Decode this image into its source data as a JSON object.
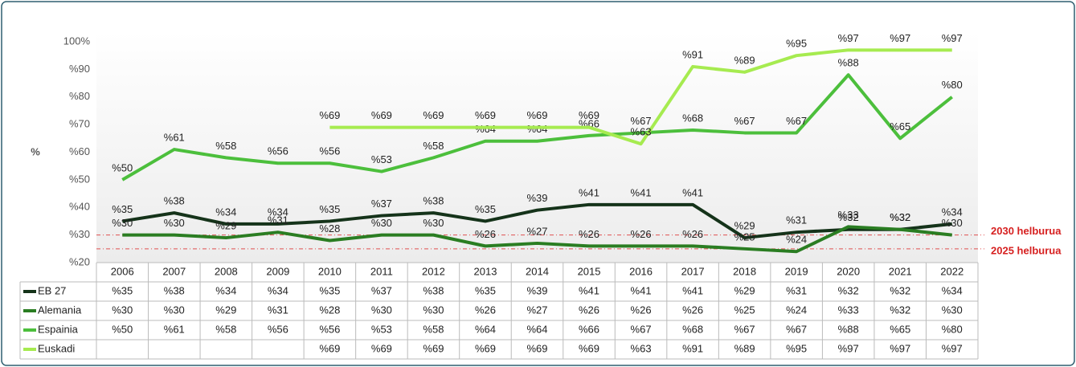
{
  "chart_data": {
    "type": "line",
    "y_label": "%",
    "categories": [
      "2006",
      "2007",
      "2008",
      "2009",
      "2010",
      "2011",
      "2012",
      "2013",
      "2014",
      "2015",
      "2016",
      "2017",
      "2018",
      "2019",
      "2020",
      "2021",
      "2022"
    ],
    "ylim": [
      20,
      100
    ],
    "yticks": [
      {
        "value": 20,
        "label": "%20"
      },
      {
        "value": 30,
        "label": "%30"
      },
      {
        "value": 40,
        "label": "%40"
      },
      {
        "value": 50,
        "label": "%50"
      },
      {
        "value": 60,
        "label": "%60"
      },
      {
        "value": 70,
        "label": "%70"
      },
      {
        "value": 80,
        "label": "%80"
      },
      {
        "value": 90,
        "label": "%90"
      },
      {
        "value": 100,
        "label": "100%"
      }
    ],
    "grid": false,
    "reference_lines": [
      {
        "value": 30,
        "label": "2030 helburua",
        "color": "#e05050"
      },
      {
        "value": 25,
        "label": "2025 helburua",
        "color": "#e05050"
      }
    ],
    "series": [
      {
        "name": "EB 27",
        "color": "#15331a",
        "values": [
          35,
          38,
          34,
          34,
          35,
          37,
          38,
          35,
          39,
          41,
          41,
          41,
          29,
          31,
          32,
          32,
          34
        ],
        "value_labels": [
          "%35",
          "%38",
          "%34",
          "%34",
          "%35",
          "%37",
          "%38",
          "%35",
          "%39",
          "%41",
          "%41",
          "%41",
          "%29",
          "%31",
          "%32",
          "%32",
          "%34"
        ]
      },
      {
        "name": "Alemania",
        "color": "#2a7d22",
        "values": [
          30,
          30,
          29,
          31,
          28,
          30,
          30,
          26,
          27,
          26,
          26,
          26,
          25,
          24,
          33,
          32,
          30
        ],
        "value_labels": [
          "%30",
          "%30",
          "%29",
          "%31",
          "%28",
          "%30",
          "%30",
          "%26",
          "%27",
          "%26",
          "%26",
          "%26",
          "%25",
          "%24",
          "%33",
          "%32",
          "%30"
        ]
      },
      {
        "name": "Espainia",
        "color": "#4cbf3c",
        "values": [
          50,
          61,
          58,
          56,
          56,
          53,
          58,
          64,
          64,
          66,
          67,
          68,
          67,
          67,
          88,
          65,
          80
        ],
        "value_labels": [
          "%50",
          "%61",
          "%58",
          "%56",
          "%56",
          "%53",
          "%58",
          "%64",
          "%64",
          "%66",
          "%67",
          "%68",
          "%67",
          "%67",
          "%88",
          "%65",
          "%80"
        ]
      },
      {
        "name": "Euskadi",
        "color": "#a6eb50",
        "values": [
          null,
          null,
          null,
          null,
          69,
          69,
          69,
          69,
          69,
          69,
          63,
          91,
          89,
          95,
          97,
          97,
          97
        ],
        "value_labels": [
          null,
          null,
          null,
          null,
          "%69",
          "%69",
          "%69",
          "%69",
          "%69",
          "%69",
          "%63",
          "%91",
          "%89",
          "%95",
          "%97",
          "%97",
          "%97"
        ]
      }
    ]
  }
}
